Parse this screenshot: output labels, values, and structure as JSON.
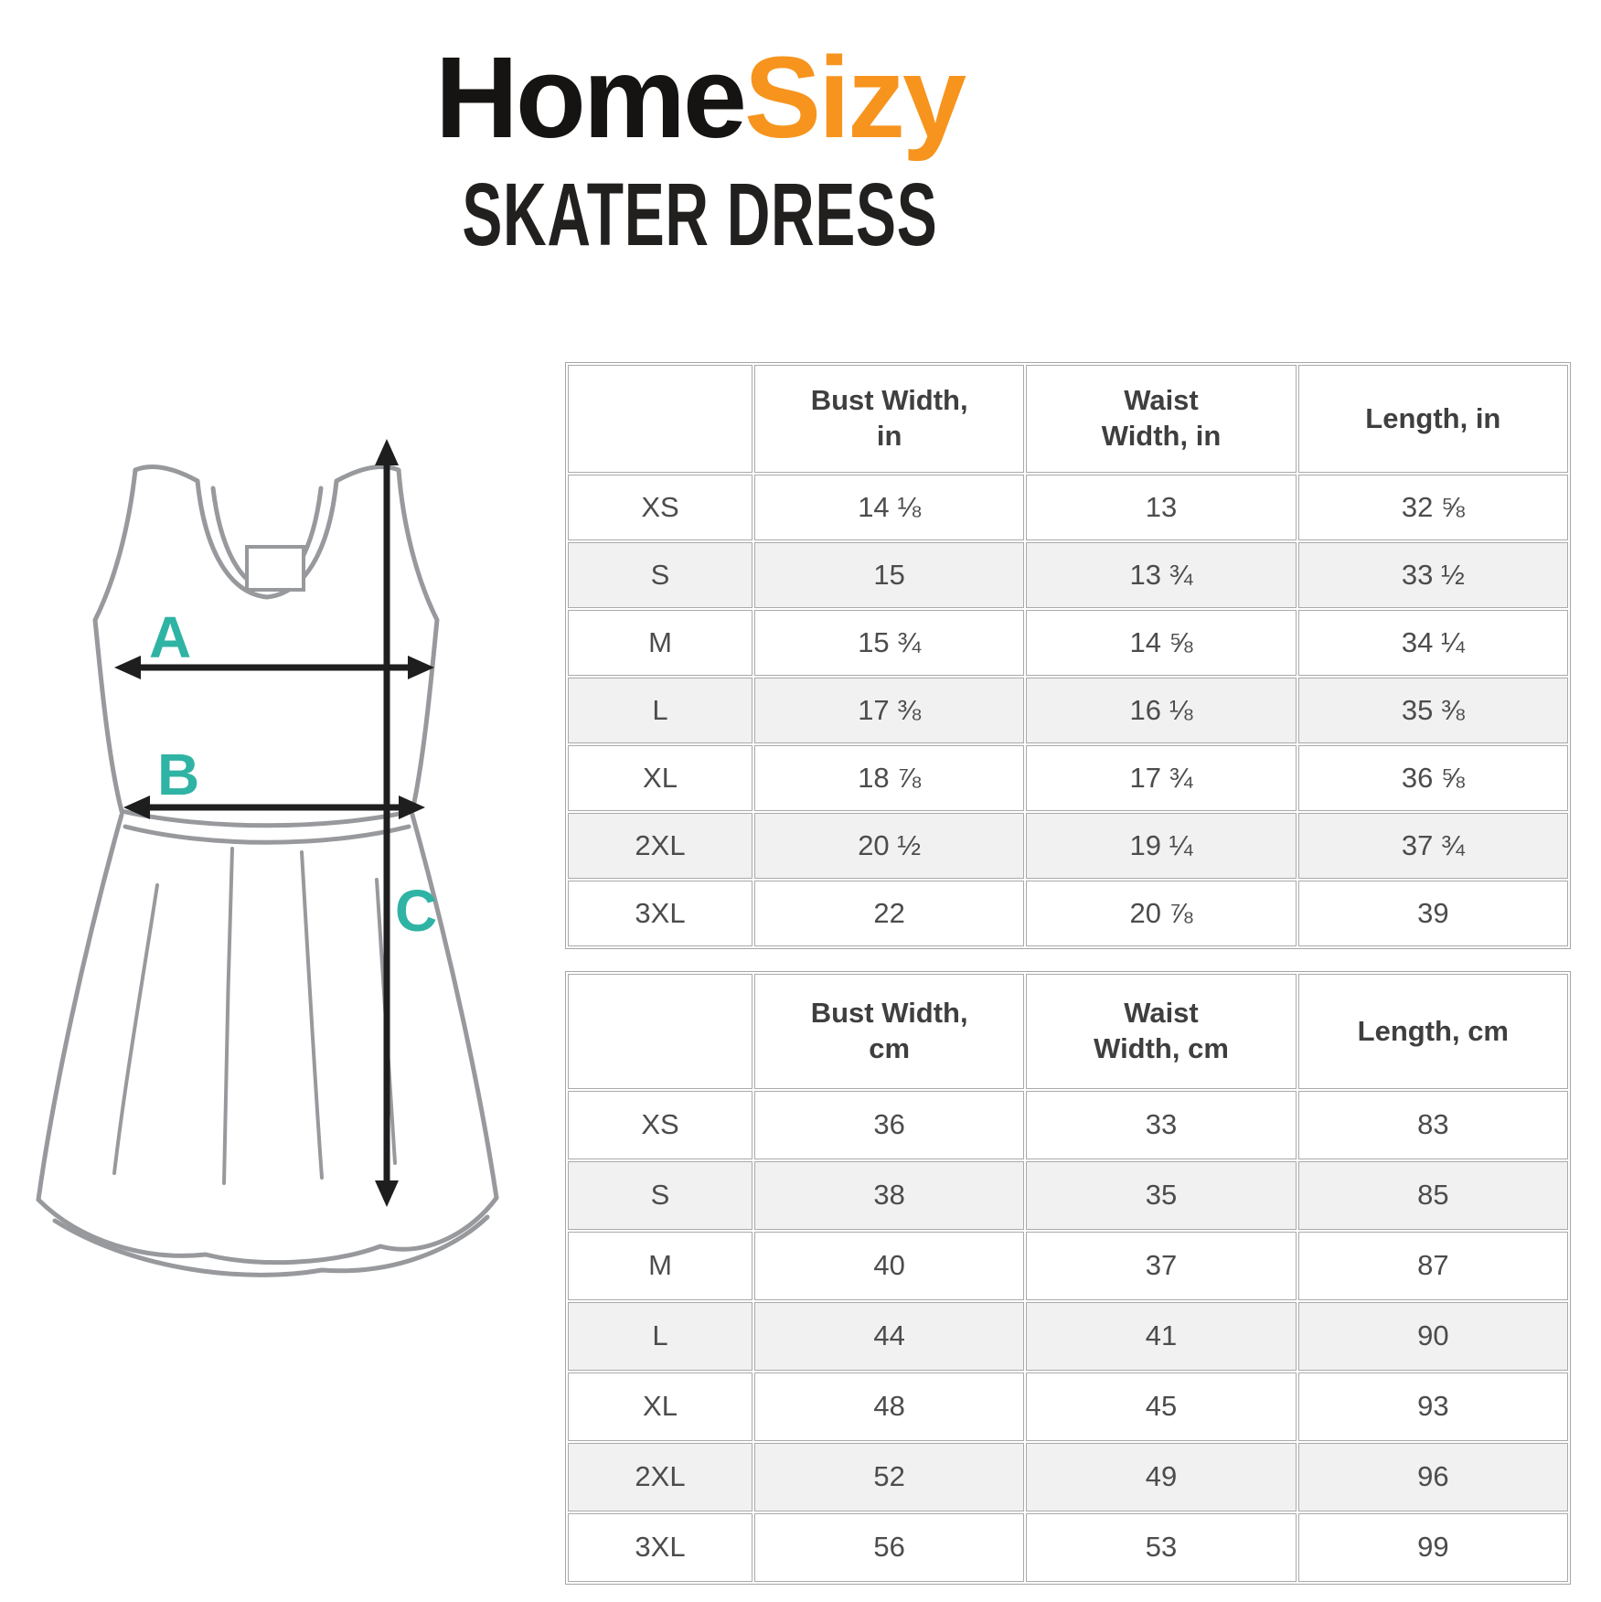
{
  "brand": {
    "primary": "Home",
    "secondary": "Sizy",
    "primary_color": "#161412",
    "secondary_color": "#f7941e"
  },
  "product": {
    "title": "SKATER DRESS"
  },
  "diagram": {
    "label_color": "#2fb3a4",
    "outline_color": "#97999c",
    "labels": {
      "bust": "A",
      "waist": "B",
      "length": "C"
    }
  },
  "tables": [
    {
      "id": "inches",
      "columns": [
        "",
        "Bust Width,\nin",
        "Waist\nWidth, in",
        "Length, in"
      ],
      "rows": [
        {
          "size": "XS",
          "bust": "14 ⅛",
          "waist": "13",
          "length": "32 ⅝"
        },
        {
          "size": "S",
          "bust": "15",
          "waist": "13 ¾",
          "length": "33 ½"
        },
        {
          "size": "M",
          "bust": "15 ¾",
          "waist": "14 ⅝",
          "length": "34 ¼"
        },
        {
          "size": "L",
          "bust": "17 ⅜",
          "waist": "16 ⅛",
          "length": "35 ⅜"
        },
        {
          "size": "XL",
          "bust": "18 ⅞",
          "waist": "17 ¾",
          "length": "36 ⅝"
        },
        {
          "size": "2XL",
          "bust": "20 ½",
          "waist": "19 ¼",
          "length": "37 ¾"
        },
        {
          "size": "3XL",
          "bust": "22",
          "waist": "20 ⅞",
          "length": "39"
        }
      ]
    },
    {
      "id": "cm",
      "columns": [
        "",
        "Bust Width,\ncm",
        "Waist\nWidth, cm",
        "Length, cm"
      ],
      "rows": [
        {
          "size": "XS",
          "bust": "36",
          "waist": "33",
          "length": "83"
        },
        {
          "size": "S",
          "bust": "38",
          "waist": "35",
          "length": "85"
        },
        {
          "size": "M",
          "bust": "40",
          "waist": "37",
          "length": "87"
        },
        {
          "size": "L",
          "bust": "44",
          "waist": "41",
          "length": "90"
        },
        {
          "size": "XL",
          "bust": "48",
          "waist": "45",
          "length": "93"
        },
        {
          "size": "2XL",
          "bust": "52",
          "waist": "49",
          "length": "96"
        },
        {
          "size": "3XL",
          "bust": "56",
          "waist": "53",
          "length": "99"
        }
      ]
    }
  ]
}
